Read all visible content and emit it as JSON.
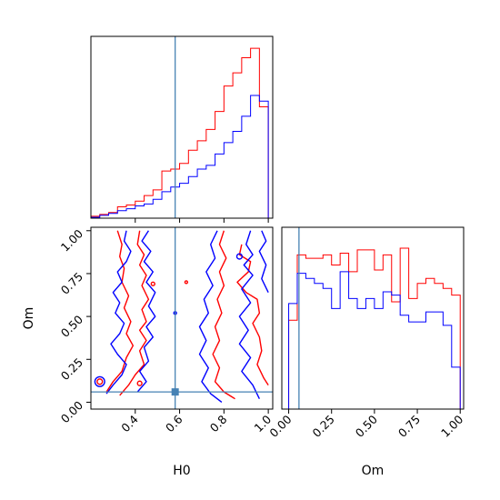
{
  "chart_data": {
    "type": "corner",
    "parameters": [
      "H0",
      "Om"
    ],
    "truths": {
      "H0": 0.58,
      "Om": 0.06
    },
    "colors": {
      "series_a": "#ff0000",
      "series_b": "#0000ff",
      "truth": "#4682b4"
    },
    "panels": {
      "h0_hist": {
        "type": "step-histogram",
        "xlim": [
          0.2,
          1.02
        ],
        "edges": [
          0.2,
          0.24,
          0.28,
          0.32,
          0.36,
          0.4,
          0.44,
          0.48,
          0.52,
          0.56,
          0.6,
          0.64,
          0.68,
          0.72,
          0.76,
          0.8,
          0.84,
          0.88,
          0.92,
          0.96,
          1.0
        ],
        "series": [
          {
            "color": "#ff0000",
            "values": [
              2,
              4,
              6,
              12,
              14,
              18,
              24,
              30,
              50,
              52,
              58,
              72,
              82,
              94,
              113,
              140,
              154,
              170,
              180,
              118
            ]
          },
          {
            "color": "#0000ff",
            "values": [
              1,
              3,
              5,
              8,
              10,
              13,
              15,
              20,
              28,
              33,
              37,
              44,
              52,
              56,
              68,
              80,
              92,
              108,
              130,
              124
            ]
          }
        ]
      },
      "om_hist": {
        "type": "step-histogram",
        "xlim": [
          -0.04,
          1.02
        ],
        "xticks": [
          "0.00",
          "0.25",
          "0.50",
          "0.75",
          "1.00"
        ],
        "edges": [
          0.0,
          0.05,
          0.1,
          0.15,
          0.2,
          0.25,
          0.3,
          0.35,
          0.4,
          0.45,
          0.5,
          0.55,
          0.6,
          0.65,
          0.7,
          0.75,
          0.8,
          0.85,
          0.9,
          0.95,
          1.0
        ],
        "series": [
          {
            "color": "#ff0000",
            "values": [
              53,
              92,
              90,
              90,
              92,
              86,
              93,
              82,
              95,
              95,
              83,
              92,
              64,
              96,
              66,
              75,
              78,
              75,
              72,
              68
            ]
          },
          {
            "color": "#0000ff",
            "values": [
              63,
              81,
              78,
              75,
              72,
              60,
              82,
              66,
              60,
              66,
              60,
              70,
              68,
              56,
              52,
              52,
              58,
              58,
              50,
              25
            ]
          }
        ]
      },
      "joint": {
        "type": "contour",
        "xlim": [
          0.2,
          1.02
        ],
        "ylim": [
          -0.04,
          1.02
        ],
        "xticks": [
          "0.4",
          "0.6",
          "0.8",
          "1.0"
        ],
        "yticks": [
          "0.00",
          "0.25",
          "0.50",
          "0.75",
          "1.00"
        ],
        "xlabel": "H0",
        "ylabel": "Om",
        "contours": [
          {
            "color": "#ff0000",
            "points": [
              [
                0.32,
                1.0
              ],
              [
                0.34,
                0.92
              ],
              [
                0.33,
                0.85
              ],
              [
                0.35,
                0.78
              ],
              [
                0.34,
                0.7
              ],
              [
                0.37,
                0.62
              ],
              [
                0.35,
                0.55
              ],
              [
                0.38,
                0.47
              ],
              [
                0.36,
                0.4
              ],
              [
                0.39,
                0.33
              ],
              [
                0.36,
                0.26
              ],
              [
                0.34,
                0.18
              ],
              [
                0.3,
                0.12
              ],
              [
                0.27,
                0.06
              ]
            ]
          },
          {
            "color": "#ff0000",
            "points": [
              [
                0.42,
                1.0
              ],
              [
                0.41,
                0.92
              ],
              [
                0.44,
                0.86
              ],
              [
                0.42,
                0.8
              ],
              [
                0.45,
                0.74
              ],
              [
                0.43,
                0.68
              ],
              [
                0.46,
                0.6
              ],
              [
                0.43,
                0.54
              ],
              [
                0.45,
                0.47
              ],
              [
                0.42,
                0.42
              ],
              [
                0.45,
                0.36
              ],
              [
                0.42,
                0.3
              ],
              [
                0.44,
                0.22
              ],
              [
                0.4,
                0.16
              ],
              [
                0.37,
                0.1
              ],
              [
                0.33,
                0.04
              ]
            ]
          },
          {
            "color": "#ff0000",
            "points": [
              [
                0.8,
                1.0
              ],
              [
                0.78,
                0.92
              ],
              [
                0.81,
                0.84
              ],
              [
                0.78,
                0.76
              ],
              [
                0.8,
                0.68
              ],
              [
                0.77,
                0.6
              ],
              [
                0.79,
                0.52
              ],
              [
                0.76,
                0.44
              ],
              [
                0.78,
                0.36
              ],
              [
                0.75,
                0.28
              ],
              [
                0.78,
                0.2
              ],
              [
                0.76,
                0.12
              ],
              [
                0.8,
                0.06
              ],
              [
                0.85,
                0.02
              ]
            ]
          },
          {
            "color": "#ff0000",
            "points": [
              [
                0.88,
                0.92
              ],
              [
                0.87,
                0.86
              ],
              [
                0.92,
                0.82
              ],
              [
                0.91,
                0.76
              ],
              [
                0.86,
                0.7
              ],
              [
                0.9,
                0.64
              ],
              [
                0.95,
                0.6
              ],
              [
                0.96,
                0.52
              ],
              [
                0.93,
                0.46
              ],
              [
                0.96,
                0.38
              ],
              [
                0.97,
                0.3
              ],
              [
                0.95,
                0.22
              ],
              [
                0.98,
                0.14
              ],
              [
                1.0,
                0.1
              ]
            ]
          }
        ],
        "contours_b": [
          {
            "color": "#0000ff",
            "points": [
              [
                0.36,
                1.0
              ],
              [
                0.35,
                0.94
              ],
              [
                0.38,
                0.88
              ],
              [
                0.36,
                0.82
              ],
              [
                0.32,
                0.76
              ],
              [
                0.34,
                0.7
              ],
              [
                0.3,
                0.64
              ],
              [
                0.33,
                0.58
              ],
              [
                0.31,
                0.52
              ],
              [
                0.35,
                0.46
              ],
              [
                0.33,
                0.4
              ],
              [
                0.29,
                0.34
              ],
              [
                0.32,
                0.28
              ],
              [
                0.36,
                0.22
              ],
              [
                0.34,
                0.16
              ],
              [
                0.3,
                0.1
              ],
              [
                0.27,
                0.05
              ]
            ]
          },
          {
            "color": "#0000ff",
            "points": [
              [
                0.46,
                1.0
              ],
              [
                0.43,
                0.94
              ],
              [
                0.47,
                0.88
              ],
              [
                0.44,
                0.82
              ],
              [
                0.48,
                0.76
              ],
              [
                0.45,
                0.7
              ],
              [
                0.49,
                0.64
              ],
              [
                0.46,
                0.56
              ],
              [
                0.49,
                0.5
              ],
              [
                0.45,
                0.44
              ],
              [
                0.48,
                0.38
              ],
              [
                0.44,
                0.32
              ],
              [
                0.46,
                0.24
              ],
              [
                0.42,
                0.18
              ],
              [
                0.45,
                0.12
              ],
              [
                0.41,
                0.06
              ]
            ]
          },
          {
            "color": "#0000ff",
            "points": [
              [
                0.77,
                1.0
              ],
              [
                0.74,
                0.92
              ],
              [
                0.76,
                0.84
              ],
              [
                0.72,
                0.76
              ],
              [
                0.75,
                0.68
              ],
              [
                0.71,
                0.6
              ],
              [
                0.73,
                0.52
              ],
              [
                0.69,
                0.44
              ],
              [
                0.72,
                0.36
              ],
              [
                0.69,
                0.28
              ],
              [
                0.73,
                0.2
              ],
              [
                0.7,
                0.12
              ],
              [
                0.74,
                0.05
              ],
              [
                0.79,
                0.0
              ]
            ]
          },
          {
            "color": "#0000ff",
            "points": [
              [
                0.92,
                1.0
              ],
              [
                0.9,
                0.92
              ],
              [
                0.93,
                0.86
              ],
              [
                0.89,
                0.8
              ],
              [
                0.93,
                0.74
              ],
              [
                0.88,
                0.66
              ],
              [
                0.92,
                0.58
              ],
              [
                0.87,
                0.5
              ],
              [
                0.91,
                0.42
              ],
              [
                0.87,
                0.34
              ],
              [
                0.92,
                0.26
              ],
              [
                0.88,
                0.18
              ],
              [
                0.93,
                0.1
              ],
              [
                0.96,
                0.02
              ]
            ]
          },
          {
            "color": "#0000ff",
            "points": [
              [
                0.97,
                1.0
              ],
              [
                0.99,
                0.94
              ],
              [
                0.96,
                0.88
              ],
              [
                0.99,
                0.8
              ],
              [
                0.97,
                0.72
              ],
              [
                1.0,
                0.64
              ]
            ]
          }
        ],
        "small_loops": [
          {
            "color": "#ff0000",
            "cx": 0.24,
            "cy": 0.12,
            "r": 0.012
          },
          {
            "color": "#ff0000",
            "cx": 0.42,
            "cy": 0.11,
            "r": 0.01
          },
          {
            "color": "#ff0000",
            "cx": 0.48,
            "cy": 0.69,
            "r": 0.008
          },
          {
            "color": "#ff0000",
            "cx": 0.63,
            "cy": 0.7,
            "r": 0.006
          },
          {
            "color": "#0000ff",
            "cx": 0.24,
            "cy": 0.12,
            "r": 0.022
          },
          {
            "color": "#0000ff",
            "cx": 0.58,
            "cy": 0.52,
            "r": 0.006
          },
          {
            "color": "#0000ff",
            "cx": 0.87,
            "cy": 0.85,
            "r": 0.012
          }
        ]
      }
    }
  }
}
